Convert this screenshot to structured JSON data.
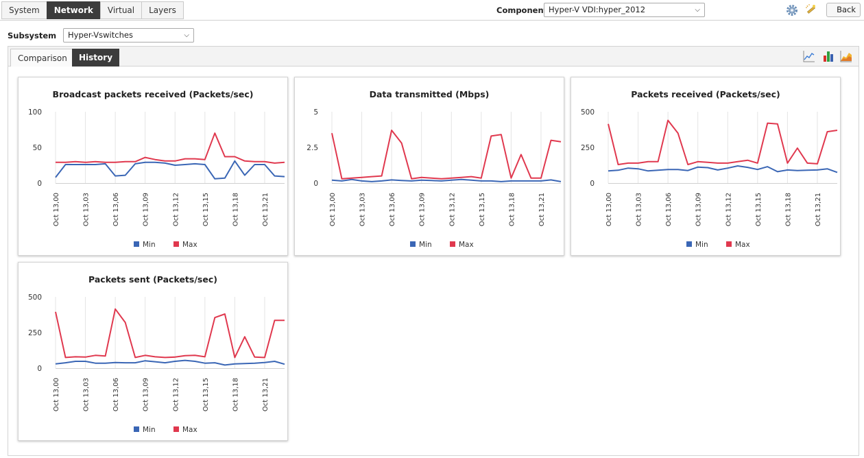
{
  "tabs": [
    "System",
    "Network",
    "Virtual",
    "Layers"
  ],
  "active_tab": "Network",
  "component": {
    "label": "Component",
    "value": "Hyper-V VDI:hyper_2012"
  },
  "toolbar": {
    "back_label": "Back",
    "icons": [
      "gear-icon",
      "wand-icon"
    ]
  },
  "subsystem": {
    "label": "Subsystem",
    "value": "Hyper-Vswitches"
  },
  "view_tabs": [
    "Comparison",
    "History"
  ],
  "active_view": "History",
  "view_icons": [
    "line-chart-icon",
    "bar-chart-icon",
    "area-chart-icon"
  ],
  "colors": {
    "min": "#3a66b5",
    "max": "#e0384e",
    "active_tab": "#3c3c3c"
  },
  "chart_data": [
    {
      "type": "line",
      "title": "Broadcast packets received (Packets/sec)",
      "ylim": [
        0,
        100
      ],
      "yticks": [
        "100",
        "50",
        "0"
      ],
      "tick_labels": [
        "Oct 13,00",
        "Oct 13,03",
        "Oct 13,06",
        "Oct 13,09",
        "Oct 13,12",
        "Oct 13,15",
        "Oct 13,18",
        "Oct 13,21"
      ],
      "grid": true,
      "legend": "bottom",
      "series": [
        {
          "name": "Min",
          "values": [
            8,
            26,
            26,
            26,
            26,
            27,
            10,
            11,
            27,
            29,
            29,
            28,
            25,
            26,
            27,
            26,
            6,
            7,
            31,
            11,
            26,
            26,
            10,
            9
          ]
        },
        {
          "name": "Max",
          "values": [
            29,
            29,
            30,
            29,
            30,
            29,
            29,
            30,
            30,
            36,
            33,
            31,
            31,
            34,
            34,
            33,
            70,
            37,
            37,
            31,
            30,
            30,
            28,
            29
          ]
        }
      ]
    },
    {
      "type": "line",
      "title": "Data transmitted (Mbps)",
      "ylim": [
        0,
        5
      ],
      "yticks": [
        "5",
        "2.5",
        "0"
      ],
      "tick_labels": [
        "Oct 13,00",
        "Oct 13,03",
        "Oct 13,06",
        "Oct 13,09",
        "Oct 13,12",
        "Oct 13,15",
        "Oct 13,18",
        "Oct 13,21"
      ],
      "grid": true,
      "legend": "bottom",
      "series": [
        {
          "name": "Min",
          "values": [
            0.2,
            0.15,
            0.25,
            0.15,
            0.1,
            0.15,
            0.22,
            0.18,
            0.15,
            0.2,
            0.18,
            0.15,
            0.2,
            0.25,
            0.2,
            0.15,
            0.15,
            0.1,
            0.15,
            0.15,
            0.15,
            0.15,
            0.22,
            0.1
          ]
        },
        {
          "name": "Max",
          "values": [
            3.5,
            0.3,
            0.35,
            0.4,
            0.45,
            0.5,
            3.7,
            2.8,
            0.3,
            0.4,
            0.35,
            0.3,
            0.35,
            0.4,
            0.45,
            0.35,
            3.3,
            3.4,
            0.35,
            2.0,
            0.35,
            0.35,
            3.0,
            2.9
          ]
        }
      ]
    },
    {
      "type": "line",
      "title": "Packets received (Packets/sec)",
      "ylim": [
        0,
        500
      ],
      "yticks": [
        "500",
        "250",
        "0"
      ],
      "tick_labels": [
        "Oct 13,00",
        "Oct 13,03",
        "Oct 13,06",
        "Oct 13,09",
        "Oct 13,12",
        "Oct 13,15",
        "Oct 13,18",
        "Oct 13,21"
      ],
      "grid": true,
      "legend": "bottom",
      "series": [
        {
          "name": "Min",
          "values": [
            85,
            90,
            105,
            100,
            85,
            90,
            95,
            95,
            88,
            112,
            108,
            92,
            105,
            120,
            110,
            95,
            115,
            80,
            92,
            88,
            90,
            92,
            100,
            75
          ]
        },
        {
          "name": "Max",
          "values": [
            415,
            130,
            140,
            140,
            150,
            150,
            440,
            350,
            130,
            150,
            145,
            140,
            140,
            150,
            160,
            140,
            420,
            415,
            140,
            245,
            140,
            135,
            360,
            370
          ]
        }
      ]
    },
    {
      "type": "line",
      "title": "Packets sent (Packets/sec)",
      "ylim": [
        0,
        500
      ],
      "yticks": [
        "500",
        "250",
        "0"
      ],
      "tick_labels": [
        "Oct 13,00",
        "Oct 13,03",
        "Oct 13,06",
        "Oct 13,09",
        "Oct 13,12",
        "Oct 13,15",
        "Oct 13,18",
        "Oct 13,21"
      ],
      "grid": true,
      "legend": "bottom",
      "series": [
        {
          "name": "Min",
          "values": [
            30,
            38,
            48,
            48,
            35,
            35,
            40,
            38,
            38,
            52,
            45,
            38,
            48,
            55,
            48,
            35,
            38,
            22,
            30,
            32,
            35,
            40,
            48,
            28
          ]
        },
        {
          "name": "Max",
          "values": [
            395,
            75,
            80,
            78,
            90,
            85,
            415,
            320,
            75,
            90,
            80,
            75,
            78,
            88,
            90,
            80,
            355,
            380,
            75,
            220,
            78,
            75,
            335,
            335
          ]
        }
      ]
    }
  ]
}
